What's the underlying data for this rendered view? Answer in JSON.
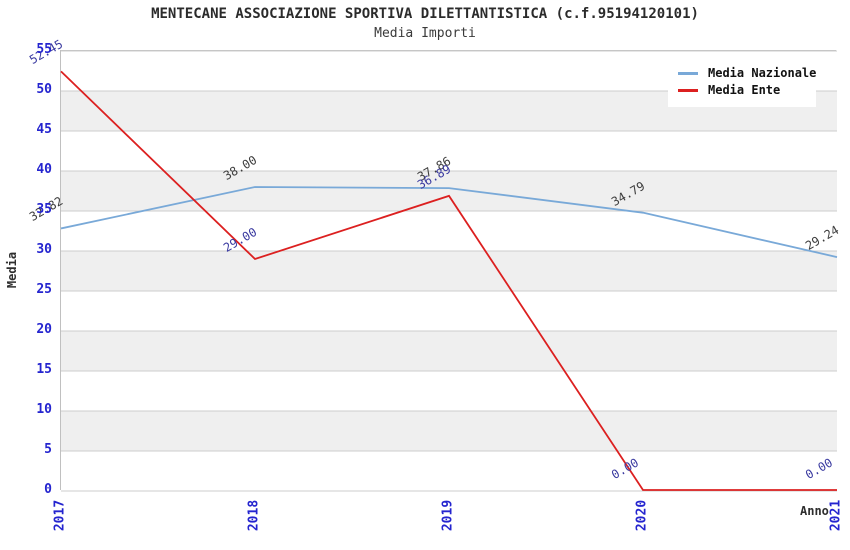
{
  "title": "MENTECANE ASSOCIAZIONE SPORTIVA DILETTANTISTICA (c.f.95194120101)",
  "subtitle": "Media Importi",
  "legend": {
    "items": [
      {
        "label": "Media Nazionale",
        "color": "#79a9d8"
      },
      {
        "label": "Media Ente",
        "color": "#dc2020"
      }
    ]
  },
  "chart_data": {
    "type": "line",
    "title": "MENTECANE ASSOCIAZIONE SPORTIVA DILETTANTISTICA (c.f.95194120101)",
    "subtitle": "Media Importi",
    "xlabel": "Anno",
    "ylabel": "Media",
    "x": [
      "2017",
      "2018",
      "2019",
      "2020",
      "2021"
    ],
    "series": [
      {
        "name": "Media Nazionale",
        "color": "#79a9d8",
        "label_color": "#3d3d3d",
        "values": [
          32.82,
          38.0,
          37.86,
          34.79,
          29.24
        ],
        "labels": [
          "32.82",
          "38.00",
          "37.86",
          "34.79",
          "29.24"
        ]
      },
      {
        "name": "Media Ente",
        "color": "#dc2020",
        "label_color": "#3a3aa0",
        "values": [
          52.45,
          29.0,
          36.89,
          0.0,
          0.0
        ],
        "labels": [
          "52.45",
          "29.00",
          "36.89",
          "0.00",
          "0.00"
        ]
      }
    ],
    "ylim": [
      0,
      55
    ],
    "yticks": [
      0,
      5,
      10,
      15,
      20,
      25,
      30,
      35,
      40,
      45,
      50,
      55
    ],
    "grid": true,
    "grid_color": "#cdcdcd",
    "band_colors": [
      "#ffffff",
      "#efefef"
    ],
    "tick_color": "#2424cf",
    "legend_position": "top-right"
  }
}
